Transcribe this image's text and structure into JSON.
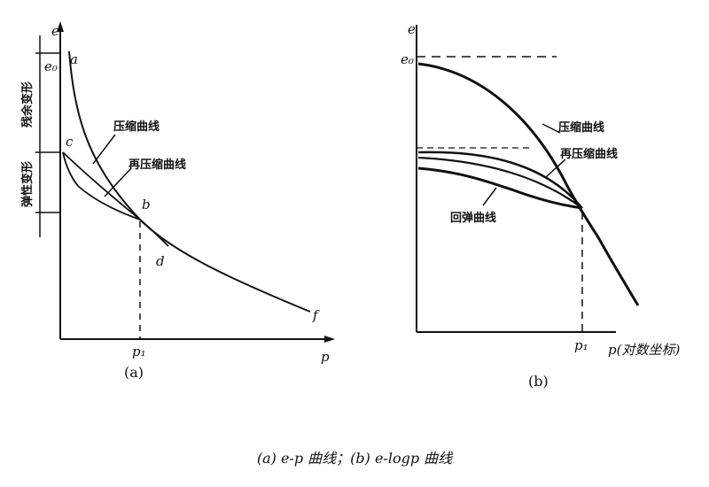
{
  "panel_a": {
    "axis_y": "e",
    "axis_x": "p",
    "e0": "e₀",
    "point_a": "a",
    "point_b": "b",
    "point_c": "c",
    "point_d": "d",
    "point_f": "f",
    "p1": "p₁",
    "curve_compression": "压缩曲线",
    "curve_recompression": "再压缩曲线",
    "elastic_label": "弹性变形",
    "residual_label": "残余变形",
    "sub_caption": "(a)"
  },
  "panel_b": {
    "axis_y": "e",
    "e0": "e₀",
    "p1": "p₁",
    "axis_x": "p(对数坐标)",
    "curve_compression": "压缩曲线",
    "curve_recompression": "再压缩曲线",
    "curve_rebound": "回弹曲线",
    "sub_caption": "(b)"
  },
  "caption": "(a) e-p 曲线；(b) e-logp 曲线"
}
